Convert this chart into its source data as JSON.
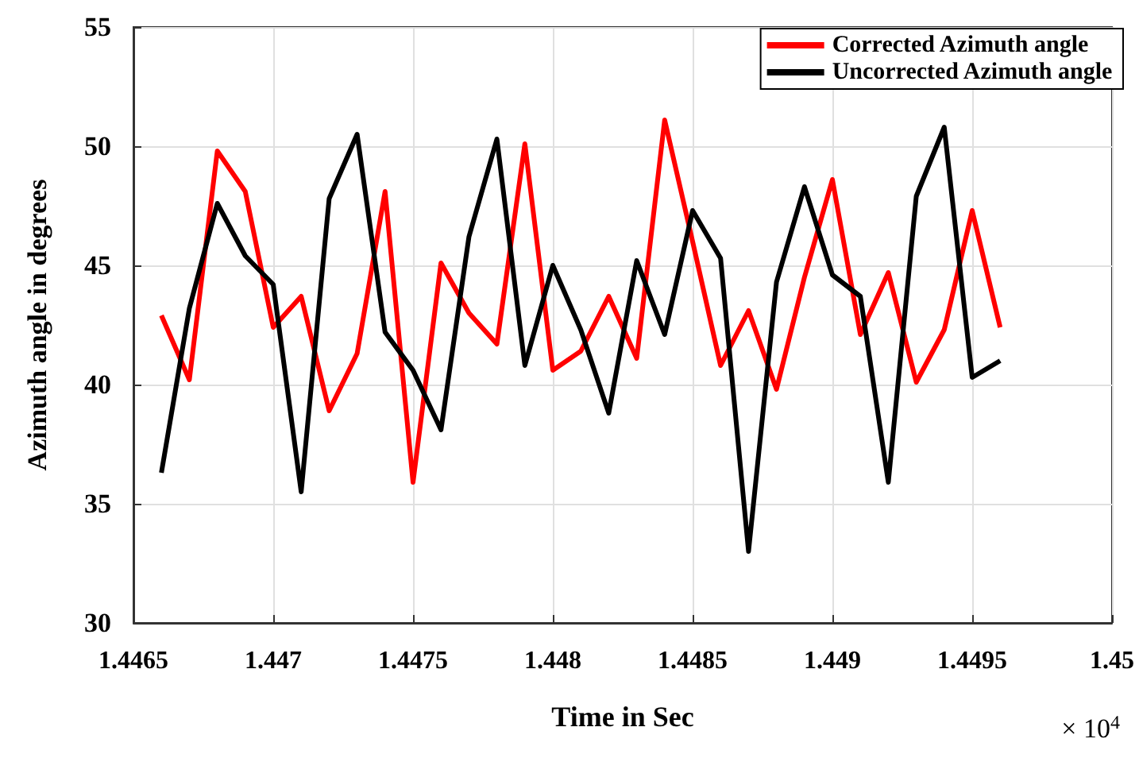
{
  "chart_data": {
    "type": "line",
    "xlabel": "Time in Sec",
    "ylabel": "Azimuth angle in degrees",
    "annotations": [
      "× 10$^{4}$"
    ],
    "x": [
      1.4466,
      1.4467,
      1.4468,
      1.4469,
      1.447,
      1.4471,
      1.4472,
      1.4473,
      1.4474,
      1.4475,
      1.4476,
      1.4477,
      1.4478,
      1.4479,
      1.448,
      1.4481,
      1.4482,
      1.4483,
      1.4484,
      1.4485,
      1.4486,
      1.4487,
      1.4488,
      1.4489,
      1.449,
      1.4491,
      1.4492,
      1.4493,
      1.4494,
      1.4495,
      1.4496
    ],
    "series": [
      {
        "name": "Corrected Azimuth angle",
        "color": "#ff0000",
        "values": [
          42.9,
          40.2,
          49.8,
          48.1,
          42.4,
          43.7,
          38.9,
          41.3,
          48.1,
          35.9,
          45.1,
          43.0,
          41.7,
          50.1,
          40.6,
          41.4,
          43.7,
          41.1,
          51.1,
          46.0,
          40.8,
          43.1,
          39.8,
          44.5,
          48.6,
          42.1,
          44.7,
          40.1,
          42.3,
          47.3,
          42.4
        ]
      },
      {
        "name": "Uncorrected Azimuth angle",
        "color": "#000000",
        "values": [
          36.3,
          43.2,
          47.6,
          45.4,
          44.2,
          35.5,
          47.8,
          50.5,
          42.2,
          40.6,
          38.1,
          46.2,
          50.3,
          40.8,
          45.0,
          42.3,
          38.8,
          45.2,
          42.1,
          47.3,
          45.3,
          33.0,
          44.3,
          48.3,
          44.6,
          43.7,
          35.9,
          47.9,
          50.8,
          40.3,
          41.0
        ]
      }
    ],
    "xlim": [
      1.4465,
      1.45
    ],
    "xticks": [
      1.4465,
      1.447,
      1.4475,
      1.448,
      1.4485,
      1.449,
      1.4495,
      1.45
    ],
    "ylim": [
      30,
      55
    ],
    "yticks": [
      30,
      35,
      40,
      45,
      50,
      55
    ],
    "grid": true,
    "legend": "top right",
    "marker": "none",
    "line_style": "solid"
  }
}
